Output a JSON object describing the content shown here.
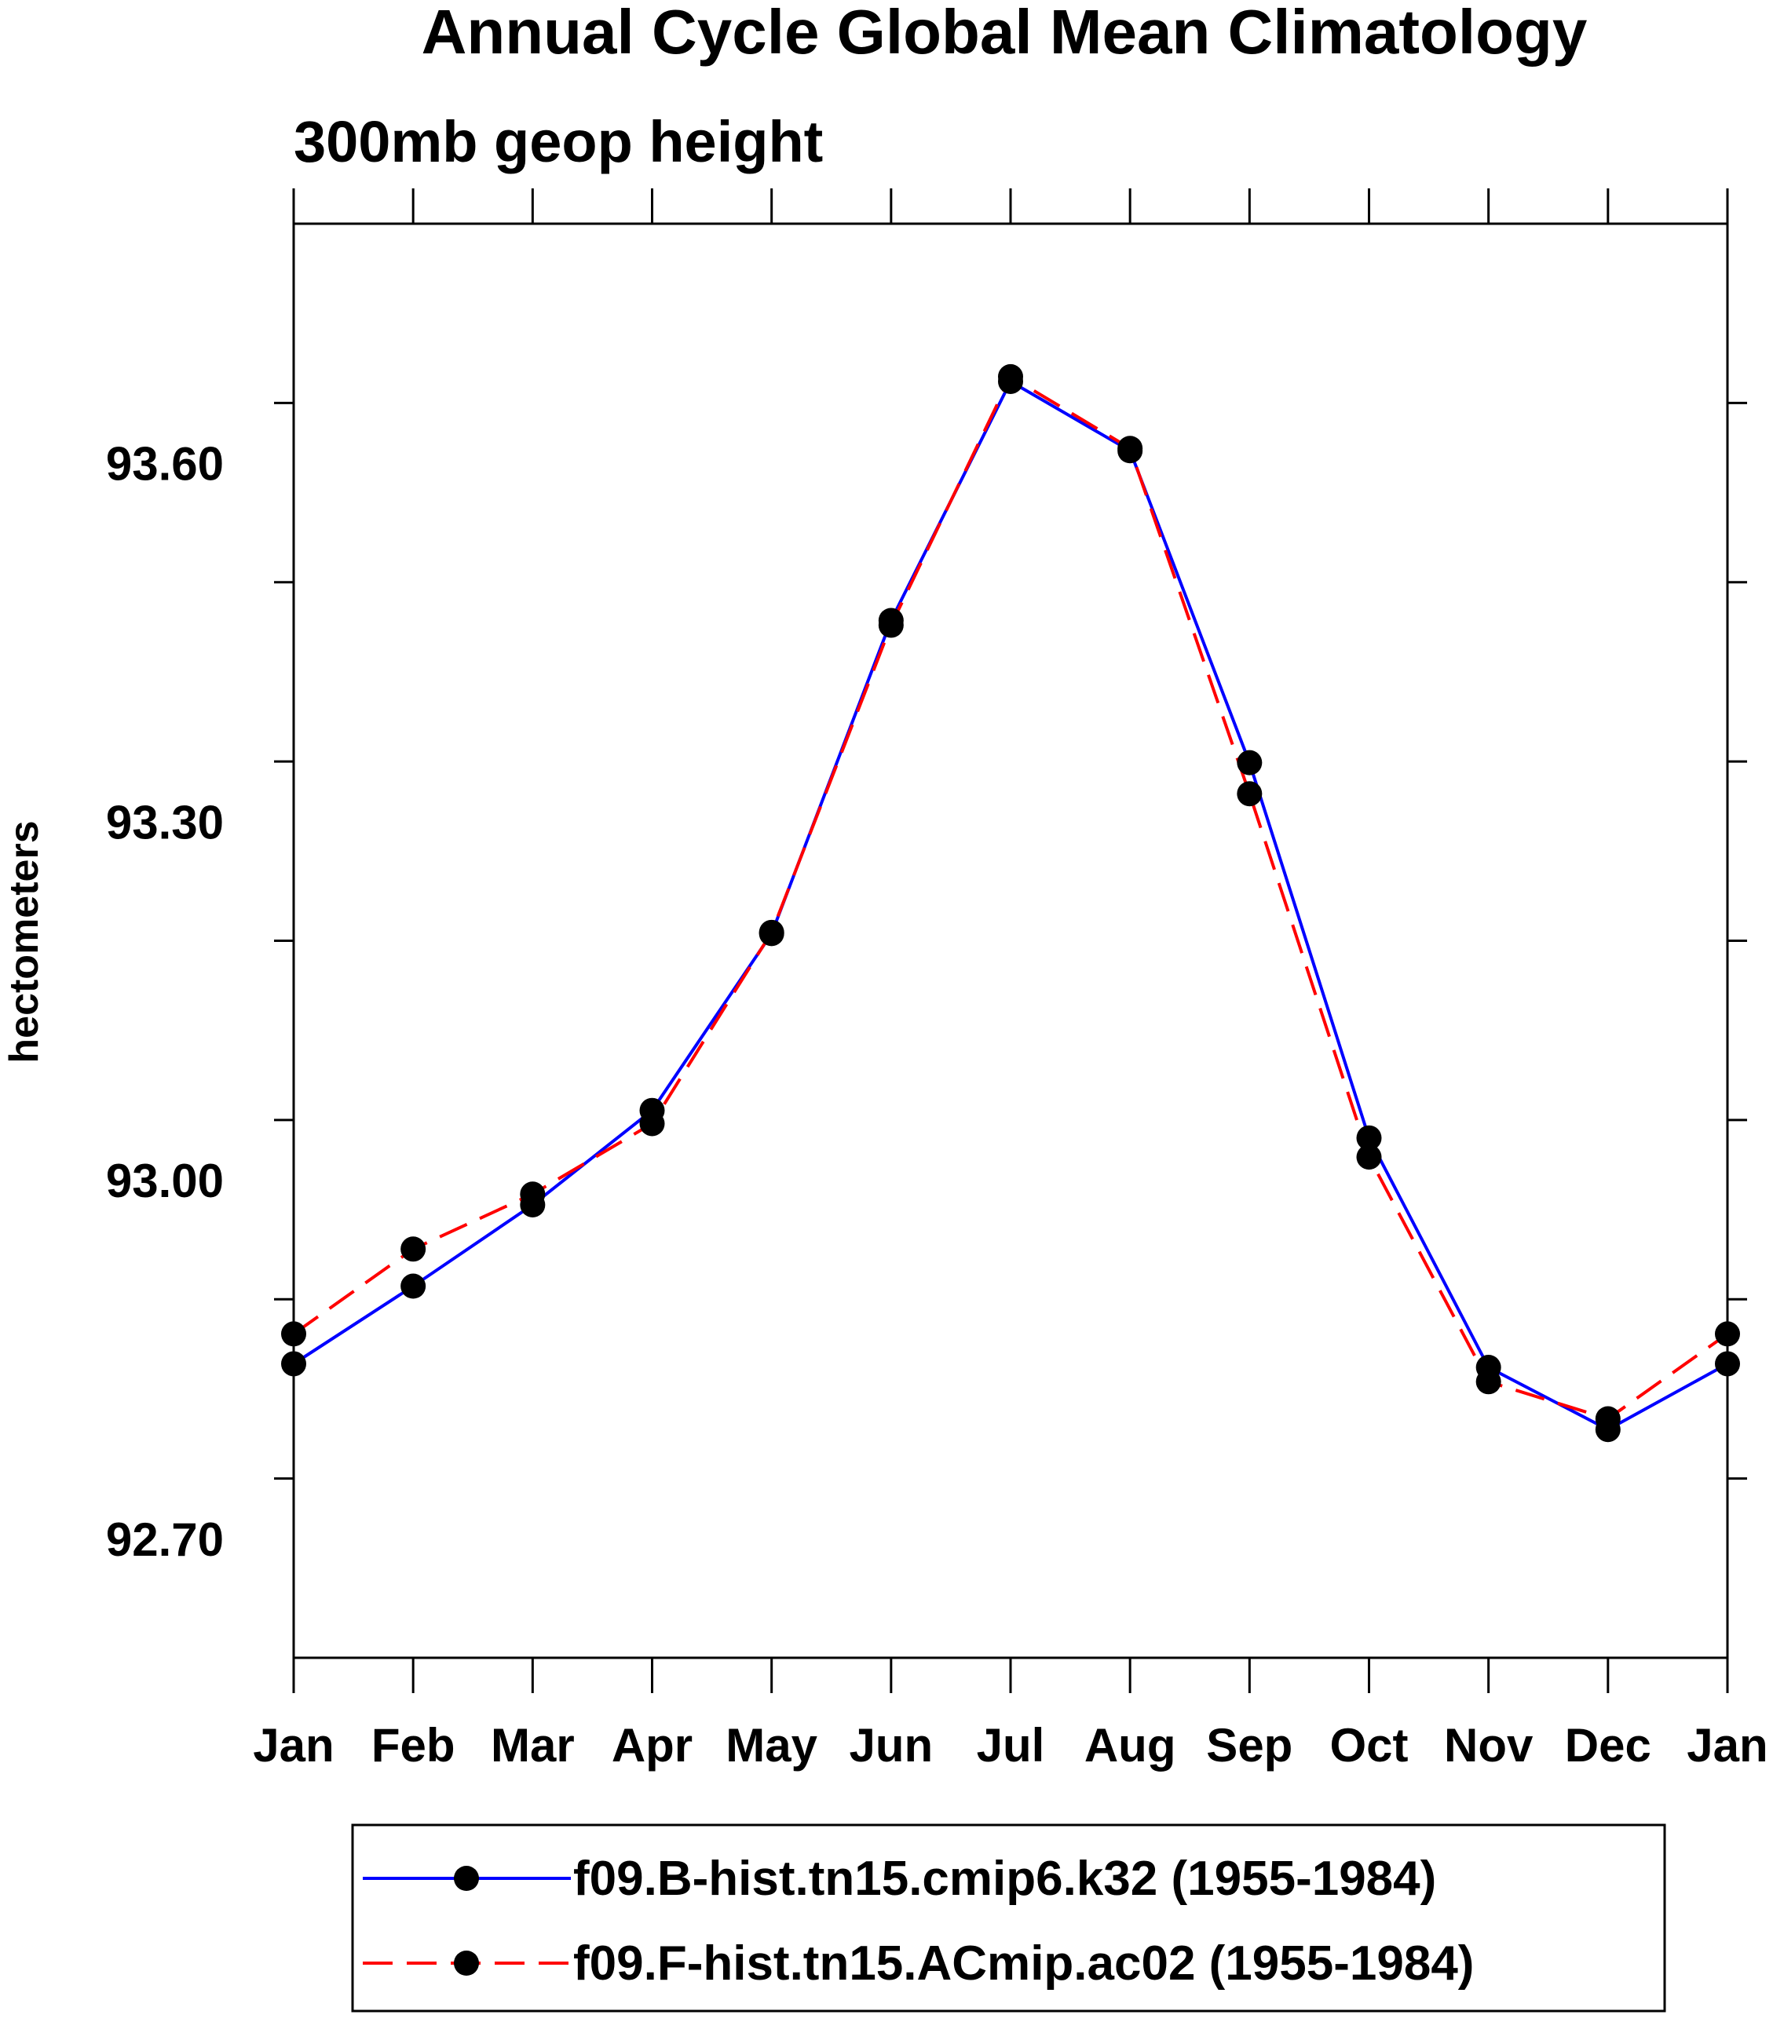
{
  "chart_data": {
    "type": "line",
    "title": "Annual Cycle Global Mean Climatology",
    "subtitle": "300mb geop height",
    "ylabel": "hectometers",
    "xlabel": "",
    "categories": [
      "Jan",
      "Feb",
      "Mar",
      "Apr",
      "May",
      "Jun",
      "Jul",
      "Aug",
      "Sep",
      "Oct",
      "Nov",
      "Dec",
      "Jan"
    ],
    "ylim": [
      92.6,
      93.8
    ],
    "yticks": [
      92.7,
      93.0,
      93.3,
      93.6
    ],
    "ytick_labels": [
      "92.70",
      "93.00",
      "93.30",
      "93.60"
    ],
    "grid": false,
    "legend_position": "bottom",
    "series": [
      {
        "name": "f09.B-hist.tn15.cmip6.k32 (1955-1984)",
        "color": "#0000ff",
        "dash": "solid",
        "marker": "filled-circle",
        "values": [
          92.846,
          92.911,
          92.979,
          93.058,
          93.206,
          93.468,
          93.668,
          93.61,
          93.349,
          93.035,
          92.843,
          92.791,
          92.846
        ]
      },
      {
        "name": "f09.F-hist.tn15.ACmip.ac02 (1955-1984)",
        "color": "#ff0000",
        "dash": "dashed",
        "marker": "filled-circle",
        "values": [
          92.871,
          92.942,
          92.988,
          93.047,
          93.207,
          93.464,
          93.672,
          93.612,
          93.323,
          93.019,
          92.831,
          92.8,
          92.871
        ]
      }
    ],
    "marker_color": "#000000",
    "axis_color": "#000000"
  }
}
